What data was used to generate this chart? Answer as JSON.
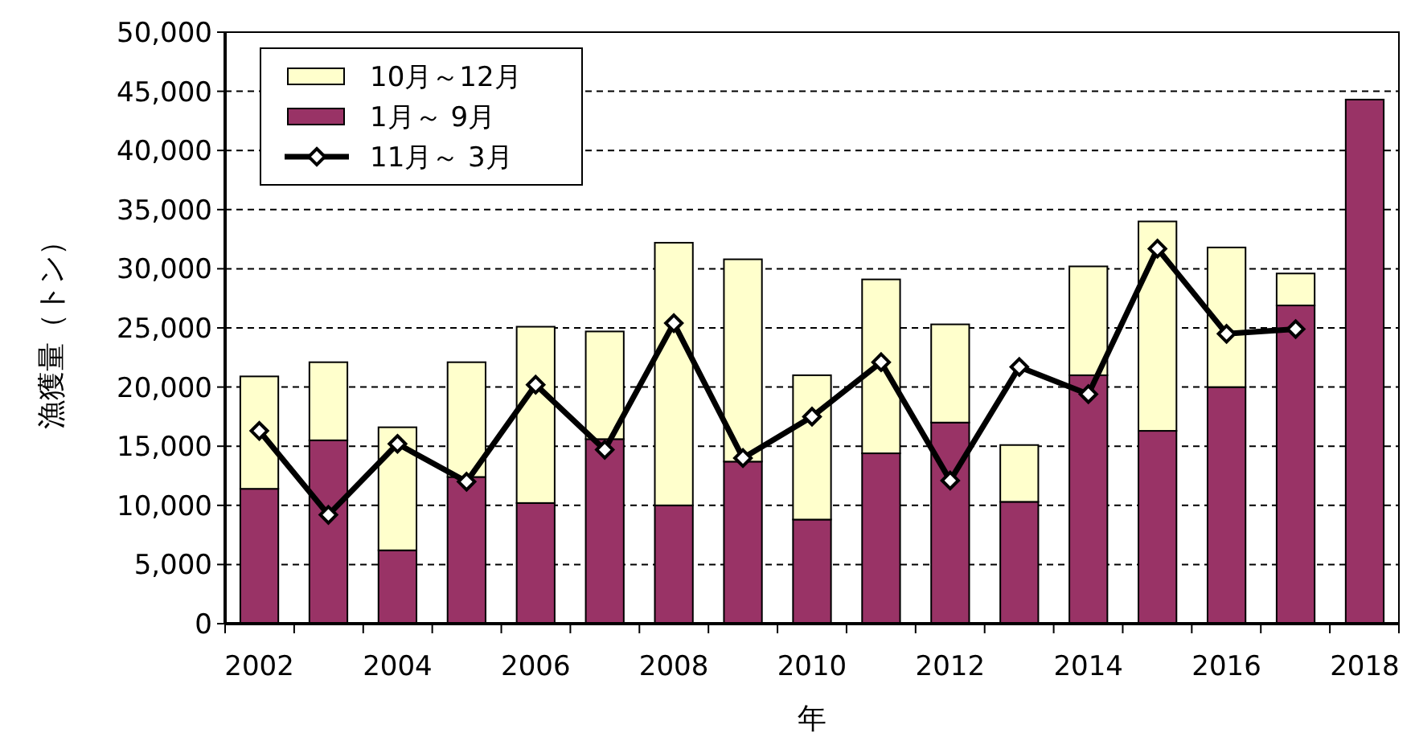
{
  "chart_data": {
    "type": "bar",
    "stacked": true,
    "xlabel": "年",
    "ylabel": "漁獲量（トン）",
    "categories": [
      "2002",
      null,
      "2004",
      null,
      "2006",
      null,
      "2008",
      null,
      "2010",
      null,
      "2012",
      null,
      "2014",
      null,
      "2016",
      null,
      "2018"
    ],
    "series": [
      {
        "name": "1月～ 9月",
        "color": "#993366",
        "values": [
          11400,
          15500,
          6200,
          12400,
          10200,
          15600,
          10000,
          13700,
          8800,
          14400,
          17000,
          10300,
          21000,
          16300,
          20000,
          26900,
          44300
        ]
      },
      {
        "name": "10月～12月",
        "color": "#ffffcc",
        "values": [
          9500,
          6600,
          10400,
          9700,
          14900,
          9100,
          22200,
          17100,
          12200,
          14700,
          8300,
          4800,
          9200,
          17700,
          11800,
          2700,
          null
        ]
      },
      {
        "name": "11月～ 3月",
        "type": "line",
        "color": "#000000",
        "marker": "diamond",
        "values": [
          16300,
          9200,
          15200,
          12000,
          20200,
          14700,
          25400,
          14000,
          17500,
          22100,
          12100,
          21700,
          19400,
          31700,
          24500,
          24900,
          null
        ]
      }
    ],
    "ylim": [
      0,
      50000
    ],
    "yticks": [
      {
        "value": 0,
        "label": "0"
      },
      {
        "value": 5000,
        "label": "5,000"
      },
      {
        "value": 10000,
        "label": "10,000"
      },
      {
        "value": 15000,
        "label": "15,000"
      },
      {
        "value": 20000,
        "label": "20,000"
      },
      {
        "value": 25000,
        "label": "25,000"
      },
      {
        "value": 30000,
        "label": "30,000"
      },
      {
        "value": 35000,
        "label": "35,000"
      },
      {
        "value": 40000,
        "label": "40,000"
      },
      {
        "value": 45000,
        "label": "45,000"
      },
      {
        "value": 50000,
        "label": "50,000"
      }
    ],
    "grid": "y",
    "legend": "top left"
  }
}
